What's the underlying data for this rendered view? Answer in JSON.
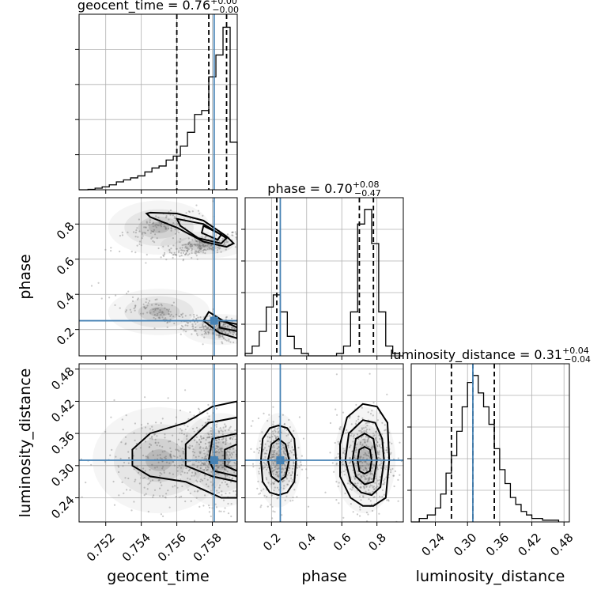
{
  "chart_data": {
    "type": "corner",
    "parameters": [
      "geocent_time",
      "phase",
      "luminosity_distance"
    ],
    "truths": {
      "geocent_time": 0.7581,
      "phase": 0.25,
      "luminosity_distance": 0.31
    },
    "truth_color": "#4682b4",
    "titles": [
      {
        "param": "geocent_time",
        "main": "geocent_time = 0.76",
        "plus": "+0.00",
        "minus": "−0.00"
      },
      {
        "param": "phase",
        "main": "phase = 0.70",
        "plus": "+0.08",
        "minus": "−0.47"
      },
      {
        "param": "luminosity_distance",
        "main": "luminosity_distance = 0.31",
        "plus": "+0.04",
        "minus": "−0.04"
      }
    ],
    "axes": {
      "geocent_time": {
        "range": [
          0.7505,
          0.7594
        ],
        "ticks": [
          0.752,
          0.754,
          0.756,
          0.758
        ],
        "tick_labels": [
          "0.752",
          "0.754",
          "0.756",
          "0.758"
        ]
      },
      "phase": {
        "range": [
          0.05,
          0.95
        ],
        "ticks": [
          0.2,
          0.4,
          0.6,
          0.8
        ],
        "tick_labels": [
          "0.2",
          "0.4",
          "0.6",
          "0.8"
        ]
      },
      "luminosity_distance": {
        "range": [
          0.195,
          0.49
        ],
        "ticks": [
          0.24,
          0.3,
          0.36,
          0.42,
          0.48
        ],
        "tick_labels": [
          "0.24",
          "0.30",
          "0.36",
          "0.42",
          "0.48"
        ]
      }
    },
    "histograms": {
      "geocent_time": {
        "quantiles": [
          0.756,
          0.7578,
          0.7588
        ],
        "bins": [
          [
            0.7505,
            0.751,
            0
          ],
          [
            0.751,
            0.7514,
            0.2
          ],
          [
            0.7514,
            0.7518,
            0.8
          ],
          [
            0.7518,
            0.7522,
            1.5
          ],
          [
            0.7522,
            0.7526,
            2.5
          ],
          [
            0.7526,
            0.753,
            4
          ],
          [
            0.753,
            0.7534,
            5
          ],
          [
            0.7534,
            0.7538,
            6
          ],
          [
            0.7538,
            0.7542,
            7
          ],
          [
            0.7542,
            0.7546,
            9
          ],
          [
            0.7546,
            0.755,
            11
          ],
          [
            0.755,
            0.7554,
            12
          ],
          [
            0.7554,
            0.7558,
            15
          ],
          [
            0.7558,
            0.7562,
            17
          ],
          [
            0.7562,
            0.7566,
            22
          ],
          [
            0.7566,
            0.757,
            29
          ],
          [
            0.757,
            0.7574,
            38
          ],
          [
            0.7574,
            0.7578,
            40
          ],
          [
            0.7578,
            0.7582,
            57
          ],
          [
            0.7582,
            0.7586,
            68
          ],
          [
            0.7586,
            0.759,
            82
          ],
          [
            0.759,
            0.7594,
            24
          ]
        ]
      },
      "phase": {
        "quantiles": [
          0.23,
          0.7,
          0.78
        ],
        "bins": [
          [
            0.05,
            0.09,
            1
          ],
          [
            0.09,
            0.13,
            4
          ],
          [
            0.13,
            0.17,
            10
          ],
          [
            0.17,
            0.21,
            20
          ],
          [
            0.21,
            0.25,
            25
          ],
          [
            0.25,
            0.29,
            18
          ],
          [
            0.29,
            0.33,
            8
          ],
          [
            0.33,
            0.37,
            3
          ],
          [
            0.37,
            0.41,
            1
          ],
          [
            0.41,
            0.45,
            0
          ],
          [
            0.45,
            0.49,
            0
          ],
          [
            0.49,
            0.53,
            0
          ],
          [
            0.53,
            0.57,
            0
          ],
          [
            0.57,
            0.61,
            1
          ],
          [
            0.61,
            0.65,
            4
          ],
          [
            0.65,
            0.69,
            18
          ],
          [
            0.69,
            0.73,
            54
          ],
          [
            0.73,
            0.77,
            60
          ],
          [
            0.77,
            0.81,
            46
          ],
          [
            0.81,
            0.85,
            18
          ],
          [
            0.85,
            0.89,
            4
          ],
          [
            0.89,
            0.93,
            1
          ],
          [
            0.93,
            0.95,
            0
          ]
        ]
      },
      "luminosity_distance": {
        "quantiles": [
          0.27,
          0.31,
          0.35
        ],
        "bins": [
          [
            0.195,
            0.21,
            0
          ],
          [
            0.21,
            0.225,
            1
          ],
          [
            0.225,
            0.24,
            2
          ],
          [
            0.24,
            0.25,
            4
          ],
          [
            0.25,
            0.26,
            8
          ],
          [
            0.26,
            0.27,
            14
          ],
          [
            0.27,
            0.28,
            19
          ],
          [
            0.28,
            0.29,
            26
          ],
          [
            0.29,
            0.3,
            33
          ],
          [
            0.3,
            0.31,
            40
          ],
          [
            0.31,
            0.32,
            42
          ],
          [
            0.32,
            0.33,
            37
          ],
          [
            0.33,
            0.34,
            33
          ],
          [
            0.34,
            0.35,
            28
          ],
          [
            0.35,
            0.36,
            21
          ],
          [
            0.36,
            0.37,
            15
          ],
          [
            0.37,
            0.38,
            11
          ],
          [
            0.38,
            0.39,
            7
          ],
          [
            0.39,
            0.4,
            5
          ],
          [
            0.4,
            0.41,
            3
          ],
          [
            0.41,
            0.42,
            2
          ],
          [
            0.42,
            0.44,
            1
          ],
          [
            0.44,
            0.47,
            0.5
          ]
        ]
      }
    },
    "joint": [
      {
        "x": "geocent_time",
        "y": "phase",
        "clusters": [
          {
            "cx": 0.7575,
            "cy": 0.68,
            "sx": 0.0011,
            "sy": 0.035,
            "n": 260,
            "corr": 0.6
          },
          {
            "cx": 0.7585,
            "cy": 0.2,
            "sx": 0.001,
            "sy": 0.04,
            "n": 260,
            "corr": -0.6
          },
          {
            "cx": 0.755,
            "cy": 0.78,
            "sx": 0.0013,
            "sy": 0.07,
            "n": 120,
            "corr": 0.8
          },
          {
            "cx": 0.755,
            "cy": 0.3,
            "sx": 0.0013,
            "sy": 0.06,
            "n": 120,
            "corr": -0.8
          }
        ],
        "contours": [
          [
            [
              0.7545,
              0.865
            ],
            [
              0.756,
              0.86
            ],
            [
              0.7575,
              0.82
            ],
            [
              0.7588,
              0.73
            ],
            [
              0.7592,
              0.69
            ],
            [
              0.7588,
              0.67
            ],
            [
              0.7575,
              0.7
            ],
            [
              0.756,
              0.78
            ],
            [
              0.7545,
              0.84
            ],
            [
              0.7543,
              0.86
            ]
          ],
          [
            [
              0.756,
              0.83
            ],
            [
              0.7575,
              0.8
            ],
            [
              0.7588,
              0.72
            ],
            [
              0.7585,
              0.69
            ],
            [
              0.7572,
              0.72
            ],
            [
              0.7562,
              0.79
            ]
          ],
          [
            [
              0.7575,
              0.79
            ],
            [
              0.7585,
              0.74
            ],
            [
              0.7583,
              0.71
            ],
            [
              0.7574,
              0.75
            ]
          ],
          [
            [
              0.7578,
              0.3
            ],
            [
              0.7586,
              0.25
            ],
            [
              0.7594,
              0.21
            ],
            [
              0.7594,
              0.15
            ],
            [
              0.7584,
              0.18
            ],
            [
              0.7575,
              0.25
            ]
          ],
          [
            [
              0.7584,
              0.25
            ],
            [
              0.7594,
              0.23
            ],
            [
              0.7594,
              0.19
            ],
            [
              0.7584,
              0.21
            ]
          ]
        ]
      },
      {
        "x": "geocent_time",
        "y": "luminosity_distance",
        "clusters": [
          {
            "cx": 0.7585,
            "cy": 0.31,
            "sx": 0.0011,
            "sy": 0.04,
            "n": 520,
            "corr": 0
          },
          {
            "cx": 0.755,
            "cy": 0.31,
            "sx": 0.0017,
            "sy": 0.045,
            "n": 260,
            "corr": 0
          }
        ],
        "contours": [
          [
            [
              0.7535,
              0.33
            ],
            [
              0.7545,
              0.36
            ],
            [
              0.7565,
              0.38
            ],
            [
              0.758,
              0.41
            ],
            [
              0.7594,
              0.42
            ],
            [
              0.7594,
              0.24
            ],
            [
              0.7585,
              0.24
            ],
            [
              0.7565,
              0.27
            ],
            [
              0.7545,
              0.28
            ],
            [
              0.7535,
              0.3
            ]
          ],
          [
            [
              0.7565,
              0.34
            ],
            [
              0.7578,
              0.38
            ],
            [
              0.7594,
              0.39
            ],
            [
              0.7594,
              0.27
            ],
            [
              0.758,
              0.28
            ],
            [
              0.7565,
              0.3
            ]
          ],
          [
            [
              0.758,
              0.35
            ],
            [
              0.7594,
              0.36
            ],
            [
              0.7594,
              0.28
            ],
            [
              0.7581,
              0.29
            ],
            [
              0.7578,
              0.31
            ]
          ],
          [
            [
              0.7587,
              0.33
            ],
            [
              0.7594,
              0.34
            ],
            [
              0.7594,
              0.29
            ],
            [
              0.7587,
              0.3
            ]
          ]
        ]
      },
      {
        "x": "phase",
        "y": "luminosity_distance",
        "clusters": [
          {
            "cx": 0.24,
            "cy": 0.31,
            "sx": 0.06,
            "sy": 0.04,
            "n": 380,
            "corr": 0
          },
          {
            "cx": 0.73,
            "cy": 0.31,
            "sx": 0.08,
            "sy": 0.045,
            "n": 520,
            "corr": 0
          }
        ],
        "contours": [
          [
            [
              0.24,
              0.375
            ],
            [
              0.29,
              0.37
            ],
            [
              0.33,
              0.35
            ],
            [
              0.34,
              0.31
            ],
            [
              0.33,
              0.27
            ],
            [
              0.29,
              0.25
            ],
            [
              0.24,
              0.245
            ],
            [
              0.19,
              0.25
            ],
            [
              0.15,
              0.27
            ],
            [
              0.14,
              0.31
            ],
            [
              0.15,
              0.35
            ],
            [
              0.19,
              0.37
            ]
          ],
          [
            [
              0.24,
              0.35
            ],
            [
              0.28,
              0.34
            ],
            [
              0.3,
              0.31
            ],
            [
              0.28,
              0.28
            ],
            [
              0.24,
              0.27
            ],
            [
              0.2,
              0.28
            ],
            [
              0.18,
              0.31
            ],
            [
              0.2,
              0.34
            ]
          ],
          [
            [
              0.72,
              0.415
            ],
            [
              0.8,
              0.41
            ],
            [
              0.86,
              0.38
            ],
            [
              0.87,
              0.31
            ],
            [
              0.85,
              0.24
            ],
            [
              0.78,
              0.225
            ],
            [
              0.72,
              0.225
            ],
            [
              0.65,
              0.24
            ],
            [
              0.59,
              0.28
            ],
            [
              0.59,
              0.34
            ],
            [
              0.63,
              0.39
            ]
          ],
          [
            [
              0.72,
              0.385
            ],
            [
              0.79,
              0.38
            ],
            [
              0.83,
              0.35
            ],
            [
              0.84,
              0.31
            ],
            [
              0.82,
              0.26
            ],
            [
              0.77,
              0.245
            ],
            [
              0.71,
              0.25
            ],
            [
              0.65,
              0.27
            ],
            [
              0.62,
              0.31
            ],
            [
              0.64,
              0.36
            ]
          ],
          [
            [
              0.73,
              0.36
            ],
            [
              0.78,
              0.35
            ],
            [
              0.8,
              0.31
            ],
            [
              0.78,
              0.27
            ],
            [
              0.73,
              0.265
            ],
            [
              0.68,
              0.28
            ],
            [
              0.66,
              0.31
            ],
            [
              0.68,
              0.35
            ]
          ],
          [
            [
              0.73,
              0.335
            ],
            [
              0.76,
              0.33
            ],
            [
              0.77,
              0.31
            ],
            [
              0.76,
              0.29
            ],
            [
              0.73,
              0.285
            ],
            [
              0.7,
              0.29
            ],
            [
              0.69,
              0.31
            ],
            [
              0.7,
              0.33
            ]
          ]
        ]
      }
    ]
  }
}
